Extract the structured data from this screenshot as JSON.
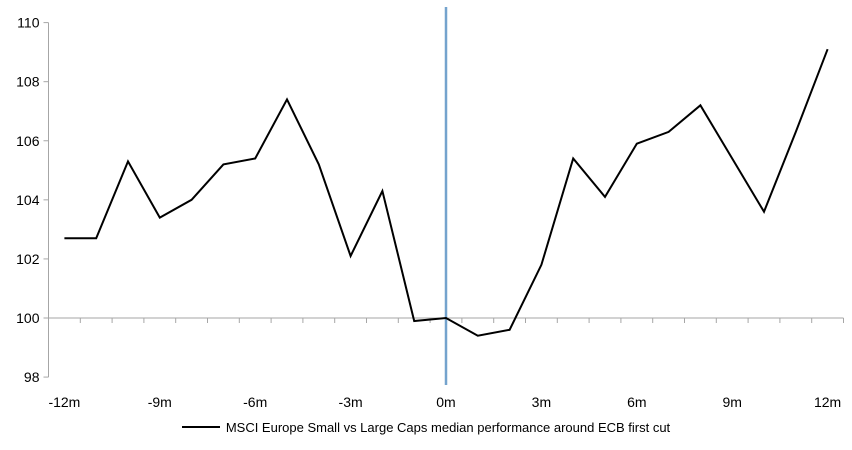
{
  "chart_data": {
    "type": "line",
    "title": "",
    "xlabel": "",
    "ylabel": "",
    "grid": false,
    "legend_position": "bottom",
    "x_months": [
      -12,
      -11,
      -10,
      -9,
      -8,
      -7,
      -6,
      -5,
      -4,
      -3,
      -2,
      -1,
      0,
      1,
      2,
      3,
      4,
      5,
      6,
      7,
      8,
      9,
      10,
      11,
      12
    ],
    "series": [
      {
        "name": "MSCI Europe Small vs Large Caps median performance around ECB first cut",
        "color": "#000000",
        "values": [
          102.7,
          102.7,
          105.3,
          103.4,
          104.0,
          105.2,
          105.4,
          107.4,
          105.2,
          102.1,
          104.3,
          99.9,
          100.0,
          99.4,
          99.6,
          101.8,
          105.4,
          104.1,
          105.9,
          106.3,
          107.2,
          105.4,
          103.6,
          106.3,
          109.1
        ]
      }
    ],
    "ylim": [
      98,
      110
    ],
    "yticks": [
      98,
      100,
      102,
      104,
      106,
      108,
      110
    ],
    "axis_cross_value": 100,
    "xtick_labels": [
      {
        "month": -12,
        "label": "-12m"
      },
      {
        "month": -9,
        "label": "-9m"
      },
      {
        "month": -6,
        "label": "-6m"
      },
      {
        "month": -3,
        "label": "-3m"
      },
      {
        "month": 0,
        "label": "0m"
      },
      {
        "month": 3,
        "label": "3m"
      },
      {
        "month": 6,
        "label": "6m"
      },
      {
        "month": 9,
        "label": "9m"
      },
      {
        "month": 12,
        "label": "12m"
      }
    ],
    "event_line": {
      "month": 0,
      "color": "#74A3CD"
    }
  },
  "colors": {
    "axis": "#A6A6A6",
    "series_line": "#000000",
    "event_line": "#74A3CD",
    "background": "#FFFFFF",
    "text": "#000000"
  }
}
